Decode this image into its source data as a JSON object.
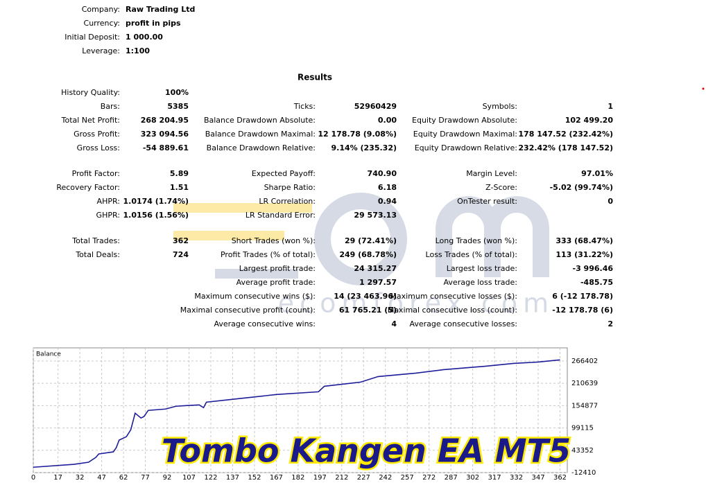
{
  "header": {
    "rows": [
      [
        "Company:",
        "Raw Trading Ltd"
      ],
      [
        "Currency:",
        "profit in pips"
      ],
      [
        "Initial Deposit:",
        "1 000.00"
      ],
      [
        "Leverage:",
        "1:100"
      ]
    ]
  },
  "results": {
    "title": "Results",
    "groups": [
      [
        [
          [
            "History Quality:",
            "100%"
          ],
          null,
          null
        ],
        [
          [
            "Bars:",
            "5385"
          ],
          [
            "Ticks:",
            "52960429"
          ],
          [
            "Symbols:",
            "1"
          ]
        ],
        [
          [
            "Total Net Profit:",
            "268 204.95"
          ],
          [
            "Balance Drawdown Absolute:",
            "0.00"
          ],
          [
            "Equity Drawdown Absolute:",
            "102 499.20"
          ]
        ],
        [
          [
            "Gross Profit:",
            "323 094.56"
          ],
          [
            "Balance Drawdown Maximal:",
            "12 178.78 (9.08%)"
          ],
          [
            "Equity Drawdown Maximal:",
            "178 147.52 (232.42%)"
          ]
        ],
        [
          [
            "Gross Loss:",
            "-54 889.61"
          ],
          [
            "Balance Drawdown Relative:",
            "9.14% (235.32)"
          ],
          [
            "Equity Drawdown Relative:",
            "232.42% (178 147.52)"
          ]
        ]
      ],
      [
        [
          [
            "Profit Factor:",
            "5.89"
          ],
          [
            "Expected Payoff:",
            "740.90"
          ],
          [
            "Margin Level:",
            "97.01%"
          ]
        ],
        [
          [
            "Recovery Factor:",
            "1.51"
          ],
          [
            "Sharpe Ratio:",
            "6.18"
          ],
          [
            "Z-Score:",
            "-5.02 (99.74%)"
          ]
        ],
        [
          [
            "AHPR:",
            "1.0174 (1.74%)"
          ],
          [
            "LR Correlation:",
            "0.94"
          ],
          [
            "OnTester result:",
            "0"
          ]
        ],
        [
          [
            "GHPR:",
            "1.0156 (1.56%)"
          ],
          [
            "LR Standard Error:",
            "29 573.13"
          ],
          null
        ]
      ],
      [
        [
          [
            "Total Trades:",
            "362"
          ],
          [
            "Short Trades (won %):",
            "29 (72.41%)"
          ],
          [
            "Long Trades (won %):",
            "333 (68.47%)"
          ]
        ],
        [
          [
            "Total Deals:",
            "724"
          ],
          [
            "Profit Trades (% of total):",
            "249 (68.78%)"
          ],
          [
            "Loss Trades (% of total):",
            "113 (31.22%)"
          ]
        ],
        [
          null,
          [
            "Largest profit trade:",
            "24 315.27"
          ],
          [
            "Largest loss trade:",
            "-3 996.46"
          ]
        ],
        [
          null,
          [
            "Average profit trade:",
            "1 297.57"
          ],
          [
            "Average loss trade:",
            "-485.75"
          ]
        ],
        [
          null,
          [
            "Maximum consecutive wins ($):",
            "14 (23 463.96)"
          ],
          [
            "Maximum consecutive losses ($):",
            "6 (-12 178.78)"
          ]
        ],
        [
          null,
          [
            "Maximal consecutive profit (count):",
            "61 765.21 (5)"
          ],
          [
            "Maximal consecutive loss (count):",
            "-12 178.78 (6)"
          ]
        ],
        [
          null,
          [
            "Average consecutive wins:",
            "4"
          ],
          [
            "Average consecutive losses:",
            "2"
          ]
        ]
      ]
    ]
  },
  "watermark": "ecomforex.com",
  "overlay_title": "Tombo Kangen EA MT5",
  "chart_data": {
    "type": "line",
    "title": "Balance",
    "x": [
      0,
      28,
      38,
      43,
      45,
      55,
      57,
      59,
      64,
      67,
      70,
      74,
      76,
      79,
      91,
      98,
      105,
      114,
      117,
      119,
      141,
      167,
      196,
      200,
      225,
      237,
      263,
      282,
      311,
      330,
      347,
      362
    ],
    "series": [
      {
        "name": "Balance",
        "color": "#1c1c9a",
        "values": [
          1000,
          8300,
          13500,
          25560,
          34200,
          39400,
          49700,
          68700,
          77300,
          94600,
          136000,
          124000,
          127400,
          143000,
          146400,
          153300,
          155000,
          156700,
          149900,
          163600,
          172300,
          182600,
          189500,
          203300,
          213700,
          227500,
          236100,
          244800,
          253400,
          260300,
          263800,
          269205
        ]
      }
    ],
    "xlim": [
      0,
      367
    ],
    "ylim": [
      -12410,
      299200
    ],
    "xticks": [
      0,
      17,
      32,
      47,
      62,
      77,
      92,
      107,
      122,
      137,
      152,
      167,
      182,
      197,
      212,
      227,
      242,
      257,
      272,
      287,
      302,
      317,
      332,
      347,
      362
    ],
    "yticks": [
      -12410,
      43352,
      99115,
      154877,
      210639,
      266402
    ],
    "grid": true
  }
}
